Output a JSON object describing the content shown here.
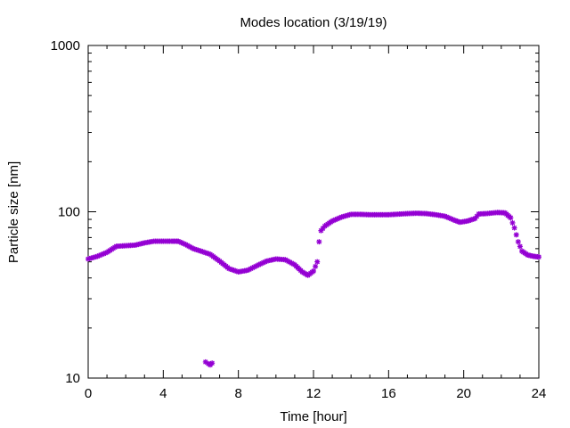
{
  "chart_data": {
    "type": "scatter",
    "title": "Modes location (3/19/19)",
    "xlabel": "Time [hour]",
    "ylabel": "Particle size [nm]",
    "xlim": [
      0,
      24
    ],
    "ylim": [
      10,
      1000
    ],
    "yscale": "log",
    "grid": false,
    "legend": "none",
    "marker_color": "#9400d3",
    "x_ticks": [
      0,
      4,
      8,
      12,
      16,
      20,
      24
    ],
    "x_tick_labels": [
      "0",
      "4",
      "8",
      "12",
      "16",
      "20",
      "24"
    ],
    "y_ticks": [
      10,
      100,
      1000
    ],
    "y_tick_labels": [
      "10",
      "100",
      "1000"
    ],
    "anchors": [
      [
        0,
        52
      ],
      [
        0.5,
        54
      ],
      [
        1.0,
        57
      ],
      [
        1.5,
        62
      ],
      [
        2.0,
        62.5
      ],
      [
        2.5,
        63
      ],
      [
        3.0,
        65
      ],
      [
        3.5,
        66.5
      ],
      [
        4.0,
        66.5
      ],
      [
        4.5,
        66.5
      ],
      [
        4.8,
        66.5
      ],
      [
        5.2,
        63.5
      ],
      [
        5.6,
        60
      ],
      [
        6.0,
        58
      ],
      [
        6.5,
        55.5
      ],
      [
        7.0,
        50.5
      ],
      [
        7.5,
        45.5
      ],
      [
        8.0,
        43.5
      ],
      [
        8.5,
        44.5
      ],
      [
        9.0,
        47.5
      ],
      [
        9.5,
        50.5
      ],
      [
        10.0,
        52
      ],
      [
        10.5,
        51.5
      ],
      [
        11.0,
        48
      ],
      [
        11.4,
        43.5
      ],
      [
        11.7,
        41.5
      ],
      [
        12.0,
        44
      ],
      [
        12.2,
        50
      ]
    ],
    "anchors2": [
      [
        12.3,
        66
      ],
      [
        12.4,
        77
      ],
      [
        12.6,
        82
      ],
      [
        13.0,
        88
      ],
      [
        13.5,
        93
      ],
      [
        14.0,
        96.5
      ],
      [
        14.5,
        96.5
      ],
      [
        15.0,
        96
      ],
      [
        16.0,
        96
      ],
      [
        17.0,
        97.5
      ],
      [
        17.5,
        98
      ],
      [
        18.0,
        97.5
      ],
      [
        18.5,
        96
      ],
      [
        19.0,
        94
      ],
      [
        19.5,
        89
      ],
      [
        19.8,
        86.5
      ],
      [
        20.2,
        88
      ],
      [
        20.6,
        91
      ],
      [
        20.8,
        97
      ],
      [
        21.2,
        97.5
      ],
      [
        21.8,
        99
      ],
      [
        22.2,
        98.5
      ],
      [
        22.5,
        92
      ],
      [
        22.7,
        80
      ],
      [
        22.9,
        66
      ],
      [
        23.1,
        58
      ],
      [
        23.4,
        55
      ],
      [
        23.7,
        54
      ],
      [
        24.0,
        53.5
      ]
    ],
    "outliers": [
      [
        6.25,
        12.5
      ],
      [
        6.4,
        12.2
      ],
      [
        6.5,
        12.0
      ],
      [
        6.6,
        12.3
      ]
    ]
  }
}
